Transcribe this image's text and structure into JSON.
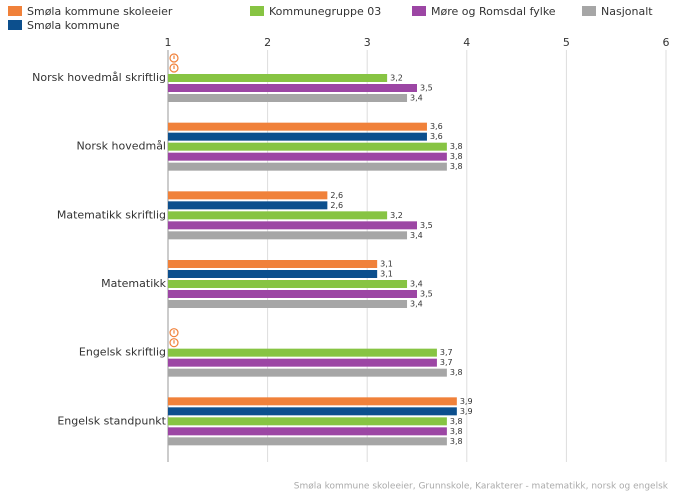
{
  "chart_data": {
    "type": "hbar",
    "categories": [
      "Norsk hovedmål skriftlig",
      "Norsk hovedmål",
      "Matematikk skriftlig",
      "Matematikk",
      "Engelsk skriftlig",
      "Engelsk standpunkt"
    ],
    "series": [
      {
        "name": "Smøla kommune skoleeier",
        "color": "#f0813a",
        "values": [
          null,
          3.6,
          2.6,
          3.1,
          null,
          3.9
        ],
        "value_labels": [
          null,
          "3,6",
          "2,6",
          "3,1",
          null,
          "3,9"
        ]
      },
      {
        "name": "Smøla kommune",
        "color": "#0c4f8d",
        "values": [
          null,
          3.6,
          2.6,
          3.1,
          null,
          3.9
        ],
        "value_labels": [
          null,
          "3,6",
          "2,6",
          "3,1",
          null,
          "3,9"
        ]
      },
      {
        "name": "Kommunegruppe 03",
        "color": "#87c443",
        "values": [
          3.2,
          3.8,
          3.2,
          3.4,
          3.7,
          3.8
        ],
        "value_labels": [
          "3,2",
          "3,8",
          "3,2",
          "3,4",
          "3,7",
          "3,8"
        ]
      },
      {
        "name": "Møre og Romsdal fylke",
        "color": "#9c46a4",
        "values": [
          3.5,
          3.8,
          3.5,
          3.5,
          3.7,
          3.8
        ],
        "value_labels": [
          "3,5",
          "3,8",
          "3,5",
          "3,5",
          "3,7",
          "3,8"
        ]
      },
      {
        "name": "Nasjonalt",
        "color": "#a6a6a6",
        "values": [
          3.4,
          3.8,
          3.4,
          3.4,
          3.8,
          3.8
        ],
        "value_labels": [
          "3,4",
          "3,8",
          "3,4",
          "3,4",
          "3,8",
          "3,8"
        ]
      }
    ],
    "xlim": [
      1,
      6
    ],
    "xticks": [
      1,
      2,
      3,
      4,
      5,
      6
    ],
    "grid": true,
    "footnote": "Smøla kommune skoleeier, Grunnskole, Karakterer - matematikk, norsk og engelsk"
  }
}
